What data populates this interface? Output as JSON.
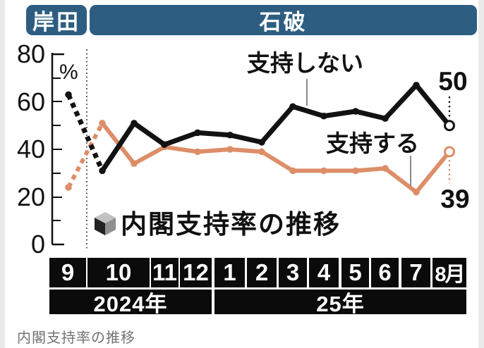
{
  "header": {
    "kishida_label": "岸田",
    "ishiba_label": "石破"
  },
  "chart": {
    "percent_label": "%",
    "y_ticks": [
      "80",
      "60",
      "40",
      "20",
      "0"
    ],
    "series_label_disapprove": "支持しない",
    "series_label_approve": "支持する",
    "end_label_disapprove": "50",
    "end_label_approve": "39",
    "title": "内閣支持率の推移"
  },
  "axis": {
    "months": [
      "9",
      "10",
      "11",
      "12",
      "1",
      "2",
      "3",
      "4",
      "5",
      "6",
      "7",
      "8月"
    ],
    "years": [
      "2024年",
      "25年"
    ]
  },
  "caption": "内閣支持率の推移",
  "colors": {
    "header_blue": "#2d5e82",
    "disapprove_black": "#121212",
    "approve_orange": "#dd8e68",
    "month_box_black": "#0b0b0b"
  },
  "chart_data": {
    "type": "line",
    "title": "内閣支持率の推移",
    "y_unit": "%",
    "ylim": [
      0,
      80
    ],
    "y_tick_step": 10,
    "x_labels": [
      "9",
      "10",
      "10",
      "11",
      "12",
      "1",
      "2",
      "3",
      "4",
      "5",
      "6",
      "7",
      "8"
    ],
    "x_year_groups": [
      {
        "label": "2024年",
        "months": [
          "9",
          "10",
          "11",
          "12"
        ]
      },
      {
        "label": "25年",
        "months": [
          "1",
          "2",
          "3",
          "4",
          "5",
          "6",
          "7",
          "8月"
        ]
      }
    ],
    "era_labels": [
      {
        "label": "岸田",
        "covers": [
          "9"
        ]
      },
      {
        "label": "石破",
        "covers": [
          "10〜8"
        ]
      }
    ],
    "note_double_october": "October column is double-width and holds two survey points",
    "series": [
      {
        "name": "支持しない",
        "color": "#121212",
        "values": [
          63,
          31,
          51,
          42,
          47,
          46,
          43,
          58,
          54,
          56,
          53,
          67,
          50
        ],
        "dashed_segment": [
          0,
          1
        ],
        "end_open_circle": true,
        "end_value_label": "50"
      },
      {
        "name": "支持する",
        "color": "#dd8e68",
        "values": [
          24,
          51,
          34,
          41,
          39,
          40,
          39,
          31,
          31,
          31,
          32,
          22,
          39
        ],
        "dashed_segment": [
          0,
          1
        ],
        "end_open_circle": true,
        "end_value_label": "39"
      }
    ],
    "legend_position": "labels on chart with pointer lines"
  }
}
